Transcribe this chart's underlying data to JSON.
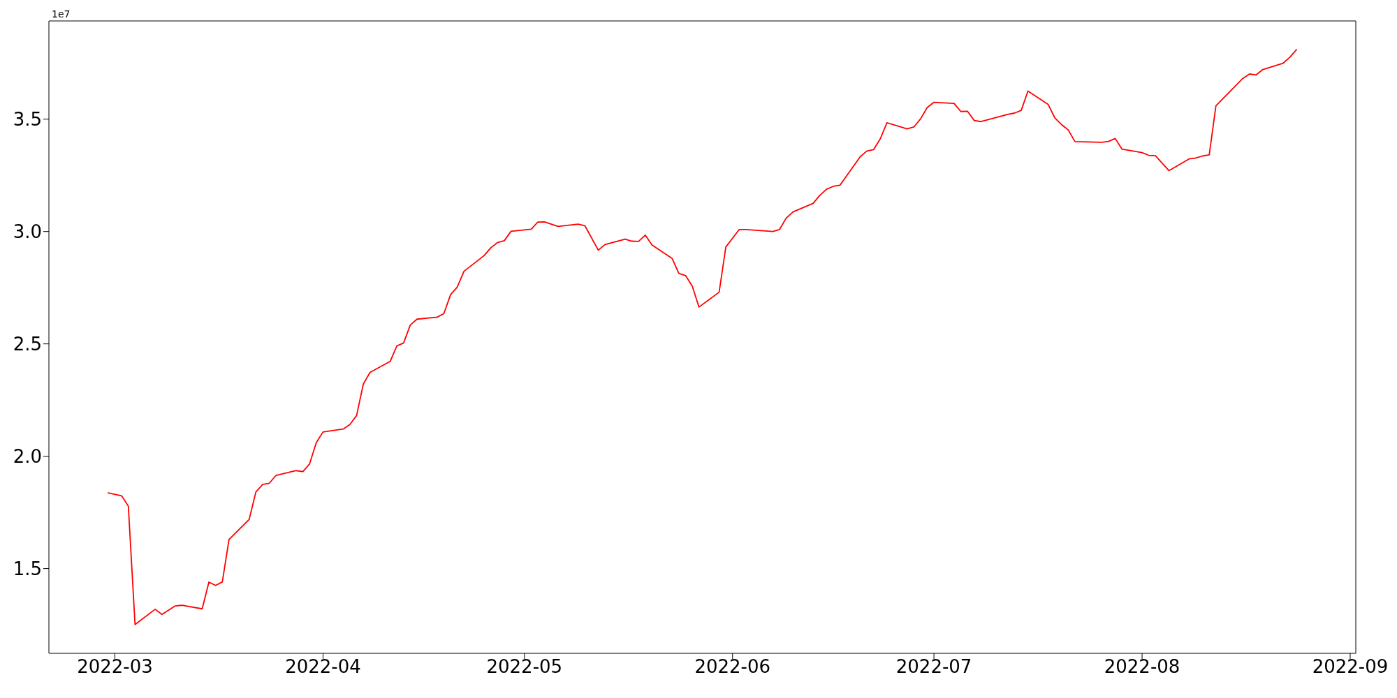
{
  "chart_data": {
    "type": "line",
    "x": [
      "2022-02-28",
      "2022-03-02",
      "2022-03-03",
      "2022-03-04",
      "2022-03-07",
      "2022-03-08",
      "2022-03-10",
      "2022-03-11",
      "2022-03-14",
      "2022-03-15",
      "2022-03-16",
      "2022-03-17",
      "2022-03-18",
      "2022-03-21",
      "2022-03-22",
      "2022-03-23",
      "2022-03-24",
      "2022-03-25",
      "2022-03-28",
      "2022-03-29",
      "2022-03-30",
      "2022-03-31",
      "2022-04-01",
      "2022-04-04",
      "2022-04-05",
      "2022-04-06",
      "2022-04-07",
      "2022-04-08",
      "2022-04-11",
      "2022-04-12",
      "2022-04-13",
      "2022-04-14",
      "2022-04-15",
      "2022-04-18",
      "2022-04-19",
      "2022-04-20",
      "2022-04-21",
      "2022-04-22",
      "2022-04-25",
      "2022-04-26",
      "2022-04-27",
      "2022-04-28",
      "2022-04-29",
      "2022-05-02",
      "2022-05-03",
      "2022-05-04",
      "2022-05-06",
      "2022-05-09",
      "2022-05-10",
      "2022-05-12",
      "2022-05-13",
      "2022-05-16",
      "2022-05-17",
      "2022-05-18",
      "2022-05-19",
      "2022-05-20",
      "2022-05-23",
      "2022-05-24",
      "2022-05-25",
      "2022-05-26",
      "2022-05-27",
      "2022-05-30",
      "2022-05-31",
      "2022-06-02",
      "2022-06-03",
      "2022-06-07",
      "2022-06-08",
      "2022-06-09",
      "2022-06-10",
      "2022-06-13",
      "2022-06-14",
      "2022-06-15",
      "2022-06-16",
      "2022-06-17",
      "2022-06-20",
      "2022-06-21",
      "2022-06-22",
      "2022-06-23",
      "2022-06-24",
      "2022-06-27",
      "2022-06-28",
      "2022-06-29",
      "2022-06-30",
      "2022-07-01",
      "2022-07-04",
      "2022-07-05",
      "2022-07-06",
      "2022-07-07",
      "2022-07-08",
      "2022-07-12",
      "2022-07-13",
      "2022-07-14",
      "2022-07-15",
      "2022-07-18",
      "2022-07-19",
      "2022-07-20",
      "2022-07-21",
      "2022-07-22",
      "2022-07-26",
      "2022-07-27",
      "2022-07-28",
      "2022-07-29",
      "2022-08-01",
      "2022-08-02",
      "2022-08-03",
      "2022-08-04",
      "2022-08-05",
      "2022-08-08",
      "2022-08-09",
      "2022-08-10",
      "2022-08-11",
      "2022-08-12",
      "2022-08-16",
      "2022-08-17",
      "2022-08-18",
      "2022-08-19",
      "2022-08-22",
      "2022-08-23",
      "2022-08-24"
    ],
    "series": [
      {
        "color": "#ff0000",
        "values": [
          1.837,
          1.824,
          1.778,
          1.251,
          1.319,
          1.296,
          1.334,
          1.337,
          1.321,
          1.44,
          1.425,
          1.441,
          1.63,
          1.719,
          1.841,
          1.874,
          1.88,
          1.915,
          1.936,
          1.932,
          1.966,
          2.061,
          2.108,
          2.121,
          2.141,
          2.181,
          2.321,
          2.373,
          2.422,
          2.491,
          2.504,
          2.584,
          2.61,
          2.619,
          2.635,
          2.719,
          2.753,
          2.823,
          2.893,
          2.928,
          2.951,
          2.959,
          3.001,
          3.01,
          3.042,
          3.043,
          3.023,
          3.033,
          3.026,
          2.917,
          2.942,
          2.966,
          2.957,
          2.956,
          2.984,
          2.94,
          2.88,
          2.814,
          2.804,
          2.757,
          2.664,
          2.73,
          2.931,
          3.009,
          3.009,
          3.0,
          3.009,
          3.06,
          3.087,
          3.125,
          3.161,
          3.188,
          3.201,
          3.206,
          3.332,
          3.358,
          3.364,
          3.412,
          3.484,
          3.457,
          3.465,
          3.501,
          3.552,
          3.575,
          3.57,
          3.534,
          3.535,
          3.494,
          3.489,
          3.521,
          3.527,
          3.539,
          3.625,
          3.566,
          3.506,
          3.476,
          3.452,
          3.4,
          3.397,
          3.401,
          3.414,
          3.367,
          3.351,
          3.339,
          3.337,
          3.304,
          3.271,
          3.323,
          3.327,
          3.336,
          3.341,
          3.559,
          3.681,
          3.701,
          3.697,
          3.721,
          3.749,
          3.775,
          3.809
        ]
      }
    ],
    "xlim": [
      "2022-02-19T04:00",
      "2022-09-01T20:00"
    ],
    "xticks": [
      "2022-03",
      "2022-04",
      "2022-05",
      "2022-06",
      "2022-07",
      "2022-08",
      "2022-09"
    ],
    "ylim": [
      1.123,
      3.937
    ],
    "yticks": [
      1.5,
      {
        "value": 2,
        "label": "2.0"
      },
      2.5,
      {
        "value": 3,
        "label": "3.0"
      },
      3.5
    ],
    "annotations": [
      "1e7"
    ],
    "marker": "none",
    "line_style": "solid"
  }
}
